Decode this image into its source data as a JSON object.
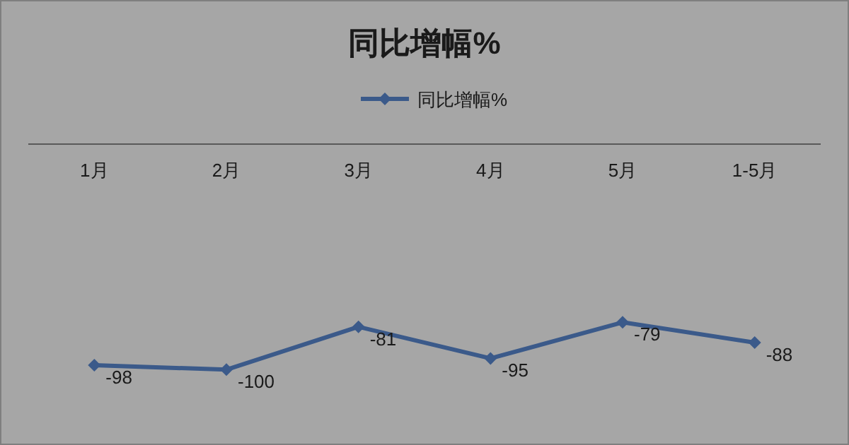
{
  "chart_data": {
    "type": "line",
    "title": "同比增幅%",
    "categories": [
      "1月",
      "2月",
      "3月",
      "4月",
      "5月",
      "1-5月"
    ],
    "series": [
      {
        "name": "同比增幅%",
        "color": "#3b5a8a",
        "values": [
          -98,
          -100,
          -81,
          -95,
          -79,
          -88
        ]
      }
    ],
    "data_labels": true,
    "legend": "top",
    "marker": "diamond",
    "grid": false
  }
}
